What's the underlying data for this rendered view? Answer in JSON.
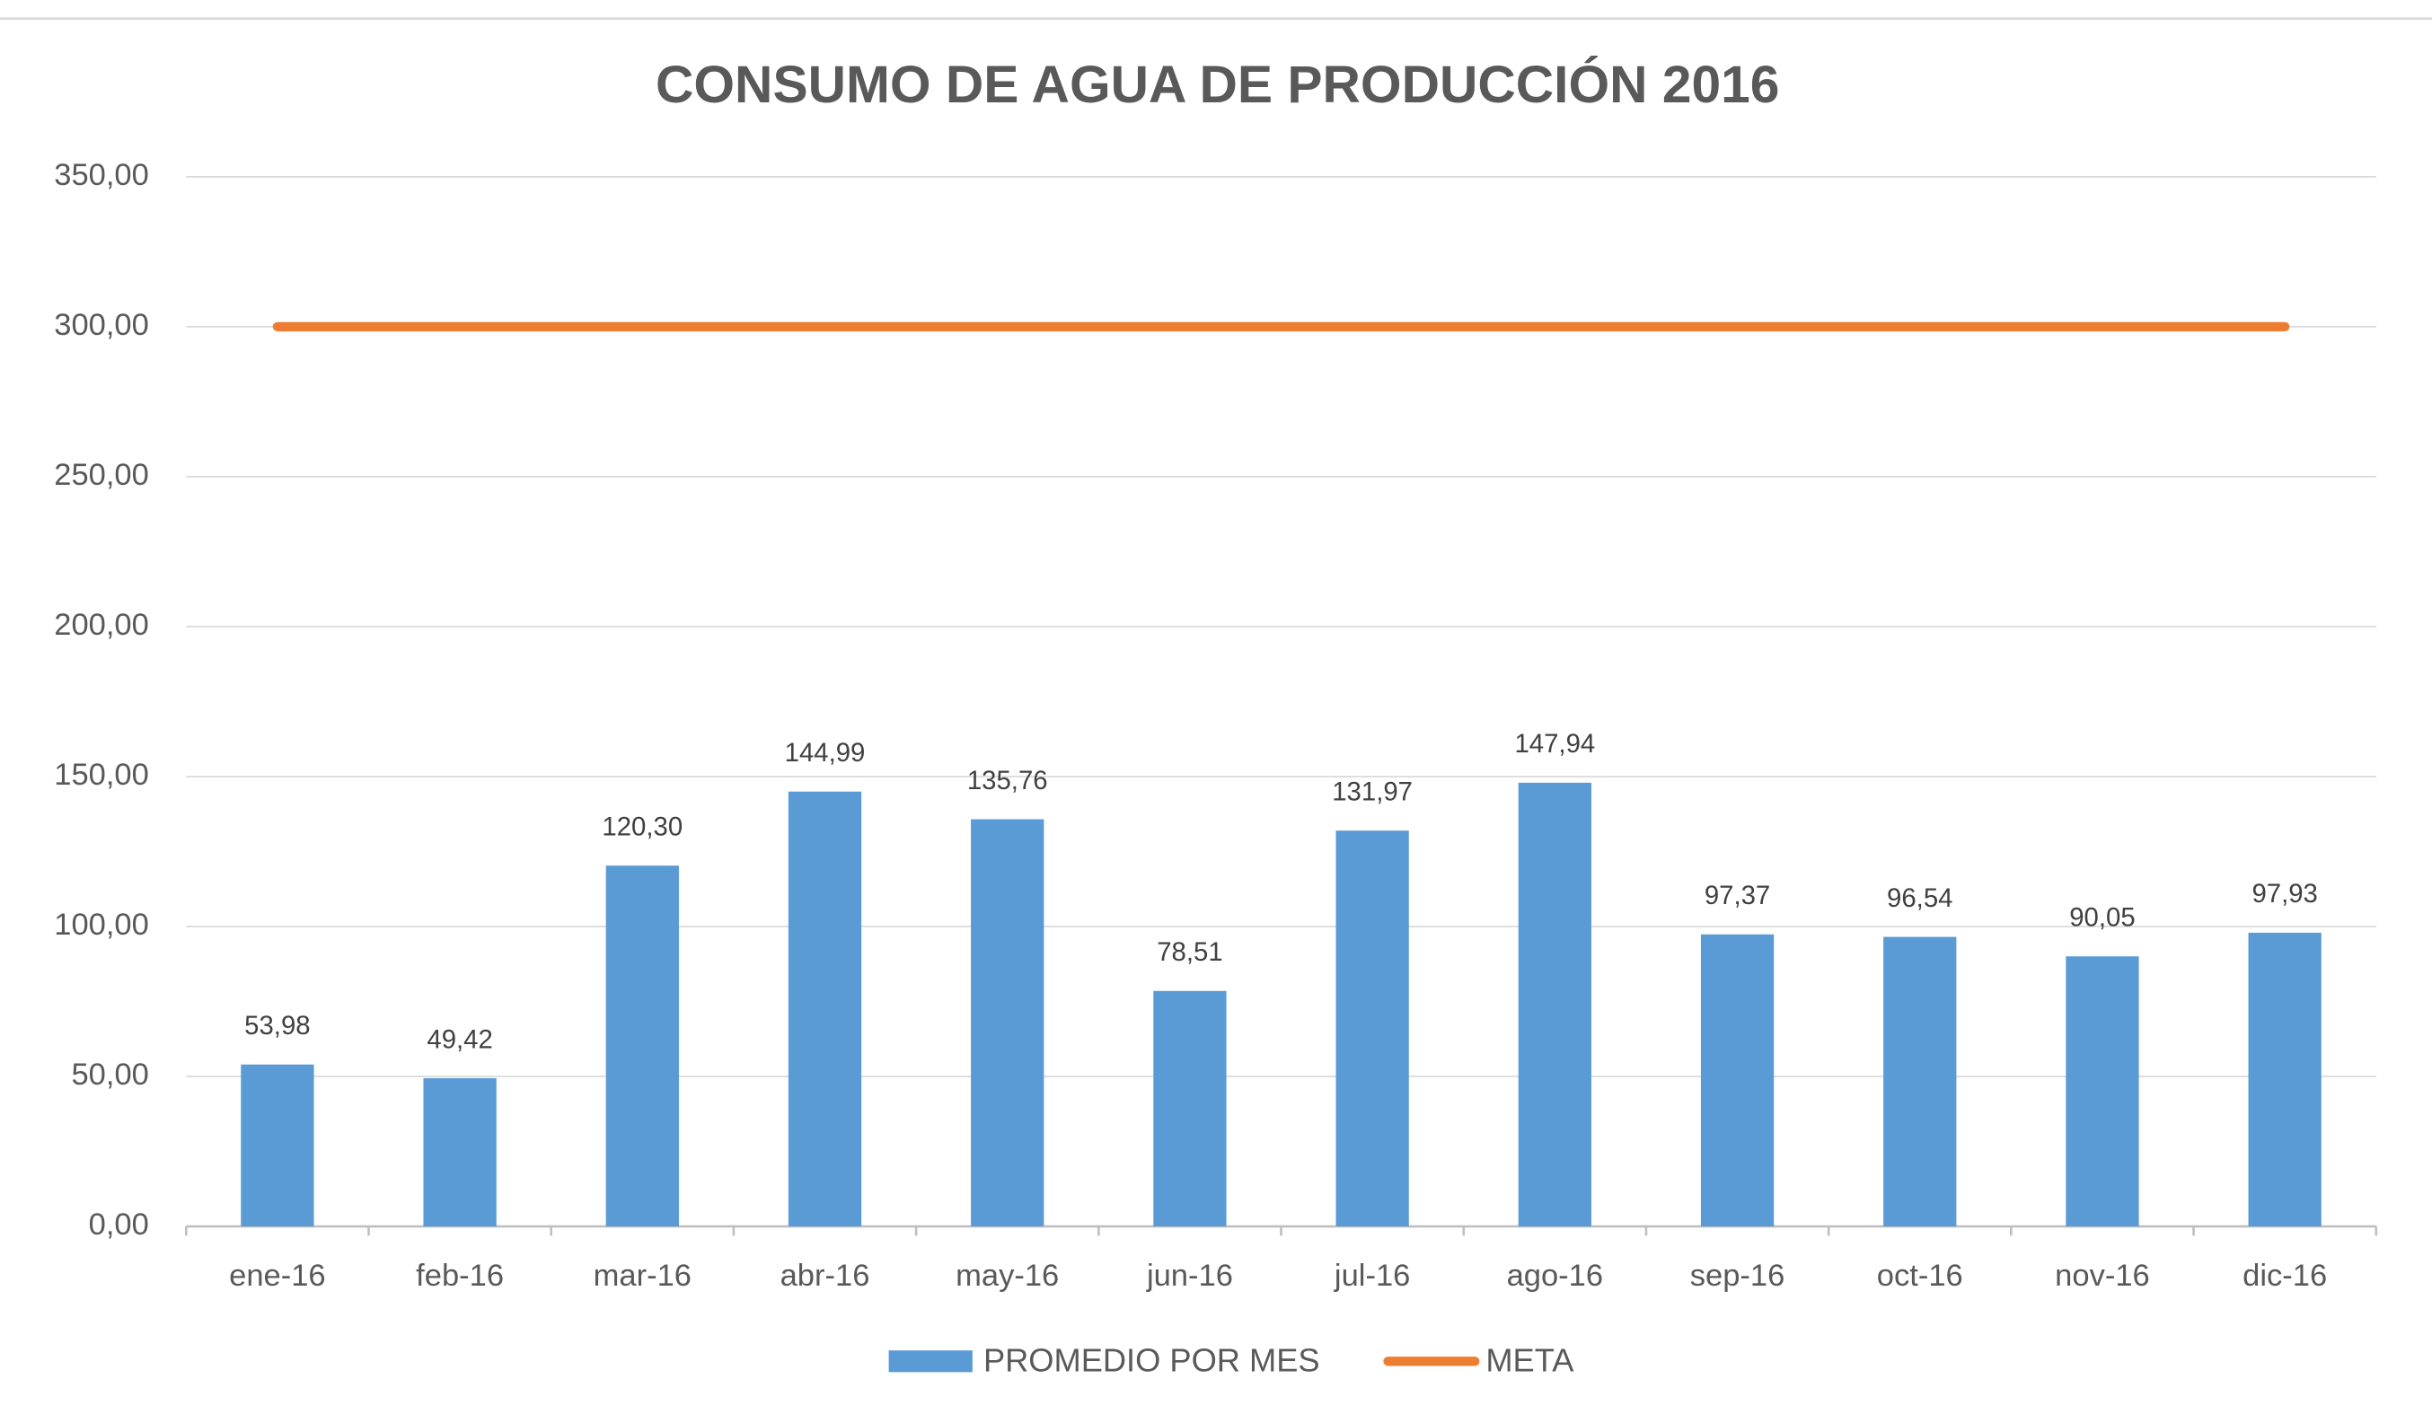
{
  "chart_data": {
    "type": "bar",
    "title": "CONSUMO DE AGUA DE PRODUCCIÓN 2016",
    "categories": [
      "ene-16",
      "feb-16",
      "mar-16",
      "abr-16",
      "may-16",
      "jun-16",
      "jul-16",
      "ago-16",
      "sep-16",
      "oct-16",
      "nov-16",
      "dic-16"
    ],
    "series": [
      {
        "name": "PROMEDIO POR MES",
        "type": "bar",
        "color": "#5b9bd5",
        "values": [
          53.98,
          49.42,
          120.3,
          144.99,
          135.76,
          78.51,
          131.97,
          147.94,
          97.37,
          96.54,
          90.05,
          97.93
        ],
        "value_labels": [
          "53,98",
          "49,42",
          "120,30",
          "144,99",
          "135,76",
          "78,51",
          "131,97",
          "147,94",
          "97,37",
          "96,54",
          "90,05",
          "97,93"
        ]
      },
      {
        "name": "META",
        "type": "line",
        "color": "#ed7d31",
        "values": [
          300,
          300,
          300,
          300,
          300,
          300,
          300,
          300,
          300,
          300,
          300,
          300
        ]
      }
    ],
    "ylim": [
      0,
      350
    ],
    "yticks": [
      {
        "value": 0,
        "label": "0,00"
      },
      {
        "value": 50,
        "label": "50,00"
      },
      {
        "value": 100,
        "label": "100,00"
      },
      {
        "value": 150,
        "label": "150,00"
      },
      {
        "value": 200,
        "label": "200,00"
      },
      {
        "value": 250,
        "label": "250,00"
      },
      {
        "value": 300,
        "label": "300,00"
      },
      {
        "value": 350,
        "label": "350,00"
      }
    ],
    "grid": true,
    "legend": "bottom"
  }
}
